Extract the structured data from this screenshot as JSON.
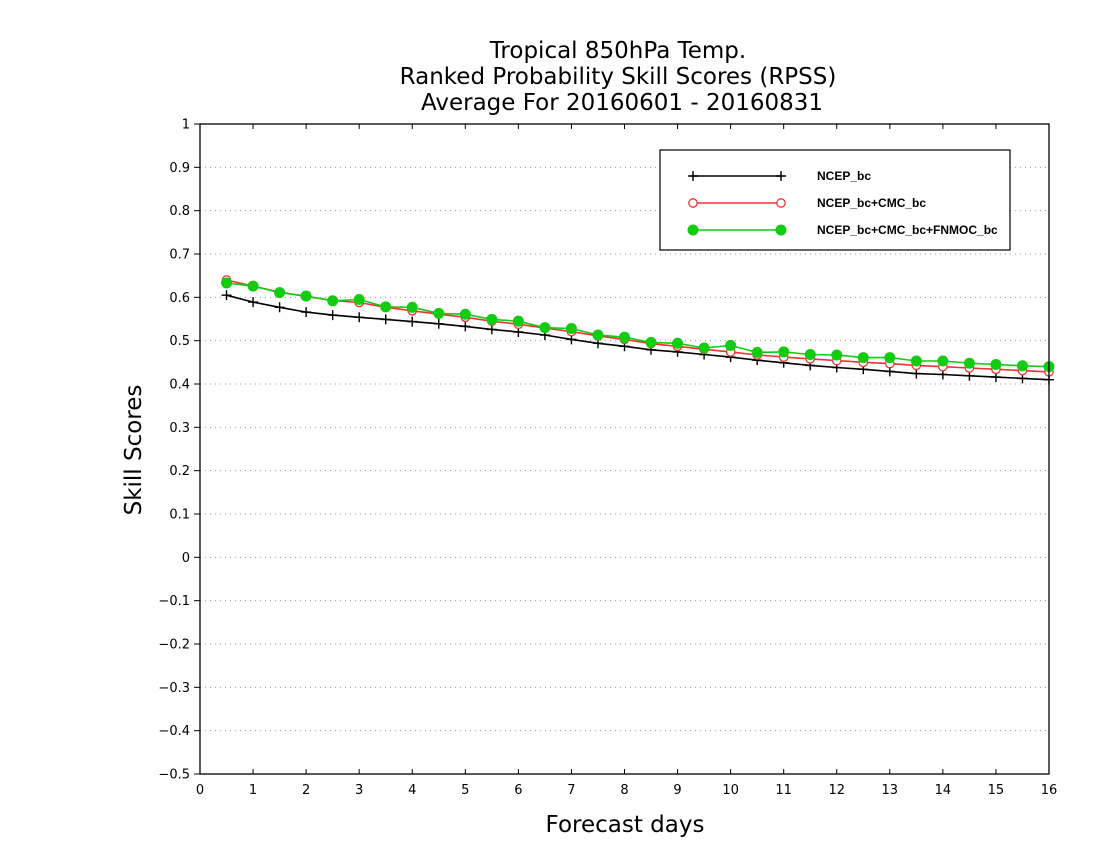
{
  "chart_data": {
    "type": "line",
    "title": [
      "Tropical 850hPa Temp.",
      "Ranked Probability Skill Scores (RPSS)",
      "Average For 20160601 - 20160831"
    ],
    "xlabel": "Forecast days",
    "ylabel": "Skill Scores",
    "xlim": [
      0,
      16
    ],
    "ylim": [
      -0.5,
      1
    ],
    "x_ticks": [
      "0",
      "1",
      "2",
      "3",
      "4",
      "5",
      "6",
      "7",
      "8",
      "9",
      "10",
      "11",
      "12",
      "13",
      "14",
      "15",
      "16"
    ],
    "y_ticks": [
      "−0.5",
      "−0.4",
      "−0.3",
      "−0.2",
      "−0.1",
      "0",
      "0.1",
      "0.2",
      "0.3",
      "0.4",
      "0.5",
      "0.6",
      "0.7",
      "0.8",
      "0.9",
      "1"
    ],
    "grid": "horizontal dotted",
    "legend_position": "top-right",
    "x": [
      0.5,
      1,
      1.5,
      2,
      2.5,
      3,
      3.5,
      4,
      4.5,
      5,
      5.5,
      6,
      6.5,
      7,
      7.5,
      8,
      8.5,
      9,
      9.5,
      10,
      10.5,
      11,
      11.5,
      12,
      12.5,
      13,
      13.5,
      14,
      14.5,
      15,
      15.5,
      16
    ],
    "series": [
      {
        "name": "NCEP_bc",
        "color": "#000000",
        "marker": "plus",
        "values": [
          0.605,
          0.589,
          0.577,
          0.566,
          0.559,
          0.554,
          0.549,
          0.544,
          0.539,
          0.533,
          0.526,
          0.52,
          0.513,
          0.503,
          0.494,
          0.487,
          0.479,
          0.474,
          0.468,
          0.462,
          0.455,
          0.449,
          0.443,
          0.438,
          0.434,
          0.429,
          0.424,
          0.422,
          0.419,
          0.416,
          0.413,
          0.41
        ]
      },
      {
        "name": "NCEP_bc+CMC_bc",
        "color": "#ee3333",
        "marker": "open-circle",
        "values": [
          0.64,
          0.626,
          0.612,
          0.602,
          0.593,
          0.588,
          0.577,
          0.569,
          0.561,
          0.554,
          0.545,
          0.538,
          0.529,
          0.521,
          0.511,
          0.503,
          0.493,
          0.487,
          0.48,
          0.474,
          0.467,
          0.462,
          0.458,
          0.454,
          0.45,
          0.447,
          0.443,
          0.44,
          0.437,
          0.434,
          0.431,
          0.428
        ]
      },
      {
        "name": "NCEP_bc+CMC_bc+FNMOC_bc",
        "color": "#11cc11",
        "marker": "filled-circle",
        "values": [
          0.633,
          0.626,
          0.611,
          0.603,
          0.592,
          0.595,
          0.578,
          0.577,
          0.563,
          0.561,
          0.549,
          0.545,
          0.53,
          0.528,
          0.513,
          0.508,
          0.496,
          0.494,
          0.483,
          0.489,
          0.473,
          0.474,
          0.468,
          0.467,
          0.461,
          0.461,
          0.453,
          0.453,
          0.448,
          0.445,
          0.442,
          0.44
        ]
      }
    ]
  }
}
